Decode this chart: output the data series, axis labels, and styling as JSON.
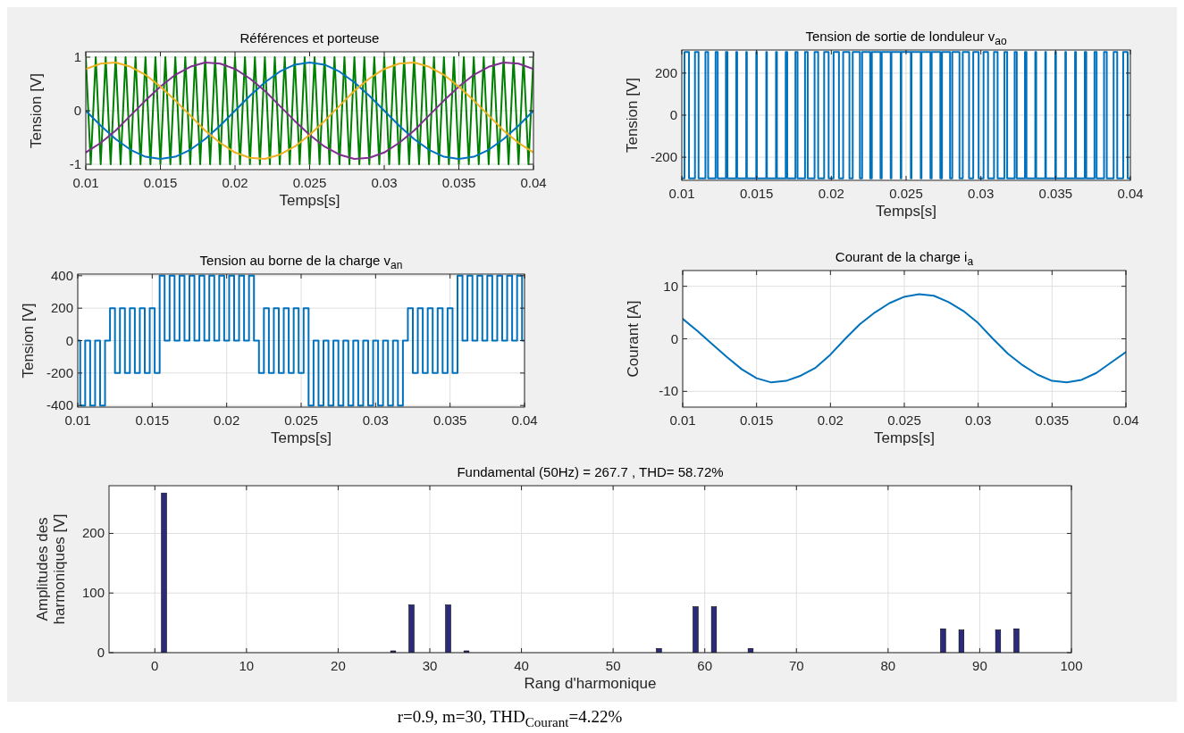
{
  "chart_data": [
    {
      "type": "line",
      "title": "Références et porteuse",
      "xlabel": "Temps[s]",
      "ylabel": "Tension [V]",
      "xlim": [
        0.01,
        0.04
      ],
      "xticks": [
        0.01,
        0.015,
        0.02,
        0.025,
        0.03,
        0.035,
        0.04
      ],
      "ylim": [
        -1.1,
        1.1
      ],
      "yticks": [
        -1,
        0,
        1
      ],
      "grid": true,
      "x": [
        0.01,
        0.011,
        0.012,
        0.013,
        0.014,
        0.015,
        0.016,
        0.017,
        0.018,
        0.019,
        0.02,
        0.021,
        0.022,
        0.023,
        0.024,
        0.025,
        0.026,
        0.027,
        0.028,
        0.029,
        0.03,
        0.031,
        0.032,
        0.033,
        0.034,
        0.035,
        0.036,
        0.037,
        0.038,
        0.039,
        0.04
      ],
      "series": [
        {
          "color": "#008000",
          "x": [
            0.01,
            0.010333,
            0.010667,
            0.011,
            0.011333,
            0.011667,
            0.012,
            0.012333,
            0.012667,
            0.013,
            0.013333,
            0.013667,
            0.014,
            0.014333,
            0.014667,
            0.015,
            0.015333,
            0.015667,
            0.016,
            0.016333,
            0.016667,
            0.017,
            0.017333,
            0.017667,
            0.018,
            0.018333,
            0.018667,
            0.019,
            0.019333,
            0.019667,
            0.02,
            0.020333,
            0.020667,
            0.021,
            0.021333,
            0.021667,
            0.022,
            0.022333,
            0.022667,
            0.023,
            0.023333,
            0.023667,
            0.024,
            0.024333,
            0.024667,
            0.025,
            0.025333,
            0.025667,
            0.026,
            0.026333,
            0.026667,
            0.027,
            0.027333,
            0.027667,
            0.028,
            0.028333,
            0.028667,
            0.029,
            0.029333,
            0.029667,
            0.03,
            0.030333,
            0.030667,
            0.031,
            0.031333,
            0.031667,
            0.032,
            0.032333,
            0.032667,
            0.033,
            0.033333,
            0.033667,
            0.034,
            0.034333,
            0.034667,
            0.035,
            0.035333,
            0.035667,
            0.036,
            0.036333,
            0.036667,
            0.037,
            0.037333,
            0.037667,
            0.038,
            0.038333,
            0.038667,
            0.039,
            0.039333,
            0.039667,
            0.04
          ],
          "values": [
            1,
            -1,
            1,
            -1,
            1,
            -1,
            1,
            -1,
            1,
            -1,
            1,
            -1,
            1,
            -1,
            1,
            -1,
            1,
            -1,
            1,
            -1,
            1,
            -1,
            1,
            -1,
            1,
            -1,
            1,
            -1,
            1,
            -1,
            1,
            -1,
            1,
            -1,
            1,
            -1,
            1,
            -1,
            1,
            -1,
            1,
            -1,
            1,
            -1,
            1,
            -1,
            1,
            -1,
            1,
            -1,
            1,
            -1,
            1,
            -1,
            1,
            -1,
            1,
            -1,
            1,
            -1,
            1,
            -1,
            1,
            -1,
            1,
            -1,
            1,
            -1,
            1,
            -1,
            1,
            -1,
            1,
            -1,
            1,
            -1,
            1,
            -1,
            1,
            -1,
            1,
            -1,
            1,
            -1,
            1,
            -1,
            1,
            -1,
            1,
            -1,
            1
          ]
        },
        {
          "color": "#0072bd",
          "values": [
            0,
            -0.28,
            -0.53,
            -0.73,
            -0.86,
            -0.9,
            -0.86,
            -0.73,
            -0.53,
            -0.28,
            0,
            0.28,
            0.53,
            0.73,
            0.86,
            0.9,
            0.86,
            0.73,
            0.53,
            0.28,
            0,
            -0.28,
            -0.53,
            -0.73,
            -0.86,
            -0.9,
            -0.86,
            -0.73,
            -0.53,
            -0.28,
            0
          ]
        },
        {
          "color": "#7e2f8e",
          "values": [
            -0.78,
            -0.6,
            -0.37,
            -0.09,
            0.19,
            0.45,
            0.67,
            0.82,
            0.9,
            0.88,
            0.78,
            0.6,
            0.37,
            0.09,
            -0.19,
            -0.45,
            -0.67,
            -0.82,
            -0.9,
            -0.88,
            -0.78,
            -0.6,
            -0.37,
            -0.09,
            0.19,
            0.45,
            0.67,
            0.82,
            0.9,
            0.88,
            0.78
          ]
        },
        {
          "color": "#edb120",
          "values": [
            0.78,
            0.88,
            0.9,
            0.82,
            0.67,
            0.45,
            0.19,
            -0.09,
            -0.37,
            -0.6,
            -0.78,
            -0.88,
            -0.9,
            -0.82,
            -0.67,
            -0.45,
            -0.19,
            0.09,
            0.37,
            0.6,
            0.78,
            0.88,
            0.9,
            0.82,
            0.67,
            0.45,
            0.19,
            -0.09,
            -0.37,
            -0.6,
            -0.78
          ]
        }
      ]
    },
    {
      "type": "step",
      "title": "Tension de sortie de londuleur v$_{ao}$",
      "xlabel": "Temps[s]",
      "ylabel": "Tension [V]",
      "xlim": [
        0.01,
        0.04
      ],
      "xticks": [
        0.01,
        0.015,
        0.02,
        0.025,
        0.03,
        0.035,
        0.04
      ],
      "ylim": [
        -310,
        310
      ],
      "yticks": [
        -200,
        0,
        200
      ],
      "grid": true,
      "series": [
        {
          "color": "#0072bd",
          "x": [
            0.01,
            0.01018,
            0.01048,
            0.01088,
            0.01112,
            0.01158,
            0.01176,
            0.01226,
            0.0124,
            0.01295,
            0.01305,
            0.01364,
            0.0137,
            0.01431,
            0.01435,
            0.01498,
            0.01502,
            0.01565,
            0.01569,
            0.0163,
            0.01636,
            0.01695,
            0.01705,
            0.0176,
            0.01774,
            0.01824,
            0.01842,
            0.01888,
            0.01912,
            0.01952,
            0.01982,
            0.02015,
            0.02051,
            0.02079,
            0.02121,
            0.02143,
            0.02191,
            0.02206,
            0.0226,
            0.02271,
            0.02329,
            0.02337,
            0.02397,
            0.02402,
            0.02464,
            0.02468,
            0.02532,
            0.02536,
            0.02598,
            0.02603,
            0.02663,
            0.02671,
            0.02729,
            0.0274,
            0.02794,
            0.02809,
            0.02857,
            0.02879,
            0.02921,
            0.02949,
            0.02985,
            0.03018,
            0.03048,
            0.03088,
            0.03112,
            0.03158,
            0.03176,
            0.03226,
            0.0324,
            0.03295,
            0.03305,
            0.03364,
            0.0337,
            0.03431,
            0.03435,
            0.03498,
            0.03502,
            0.03565,
            0.03569,
            0.0363,
            0.03636,
            0.03695,
            0.03705,
            0.0376,
            0.03774,
            0.03824,
            0.03842,
            0.03888,
            0.03912,
            0.03952,
            0.03982,
            0.04
          ],
          "values": [
            -300,
            300,
            -300,
            300,
            -300,
            300,
            -300,
            300,
            -300,
            300,
            -300,
            300,
            -300,
            300,
            -300,
            300,
            -300,
            300,
            -300,
            300,
            -300,
            300,
            -300,
            300,
            -300,
            300,
            -300,
            300,
            -300,
            300,
            -300,
            300,
            -300,
            300,
            -300,
            300,
            -300,
            300,
            -300,
            300,
            -300,
            300,
            -300,
            300,
            -300,
            300,
            -300,
            300,
            -300,
            300,
            -300,
            300,
            -300,
            300,
            -300,
            300,
            -300,
            300,
            -300,
            300,
            -300,
            300,
            -300,
            300,
            -300,
            300,
            -300,
            300,
            -300,
            300,
            -300,
            300,
            -300,
            300,
            -300,
            300,
            -300,
            300,
            -300,
            300,
            -300,
            300,
            -300,
            300,
            -300,
            300,
            -300,
            300,
            -300,
            300,
            -300,
            -300
          ]
        }
      ]
    },
    {
      "type": "step",
      "title": "Tension au borne de la charge v$_{an}$",
      "xlabel": "Temps[s]",
      "ylabel": "Tension [V]",
      "xlim": [
        0.01,
        0.04
      ],
      "xticks": [
        0.01,
        0.015,
        0.02,
        0.025,
        0.03,
        0.035,
        0.04
      ],
      "ylim": [
        -410,
        410
      ],
      "yticks": [
        -400,
        -200,
        0,
        200,
        400
      ],
      "grid": true,
      "series": [
        {
          "color": "#0072bd",
          "x": [
            0.01,
            0.010167,
            0.0105,
            0.010833,
            0.011167,
            0.0115,
            0.011833,
            0.012167,
            0.0125,
            0.012833,
            0.013167,
            0.0135,
            0.013833,
            0.014167,
            0.0145,
            0.014833,
            0.015167,
            0.0155,
            0.015833,
            0.016167,
            0.0165,
            0.016833,
            0.017167,
            0.0175,
            0.017833,
            0.018167,
            0.0185,
            0.018833,
            0.019167,
            0.0195,
            0.019833,
            0.020167,
            0.0205,
            0.020833,
            0.021167,
            0.0215,
            0.021833,
            0.022167,
            0.0225,
            0.022833,
            0.023167,
            0.0235,
            0.023833,
            0.024167,
            0.0245,
            0.024833,
            0.025167,
            0.0255,
            0.025833,
            0.026167,
            0.0265,
            0.026833,
            0.027167,
            0.0275,
            0.027833,
            0.028167,
            0.0285,
            0.028833,
            0.029167,
            0.0295,
            0.029833,
            0.030167,
            0.0305,
            0.030833,
            0.031167,
            0.0315,
            0.031833,
            0.032167,
            0.0325,
            0.032833,
            0.033167,
            0.0335,
            0.033833,
            0.034167,
            0.0345,
            0.034833,
            0.035167,
            0.0355,
            0.035833,
            0.036167,
            0.0365,
            0.036833,
            0.037167,
            0.0375,
            0.037833,
            0.038167,
            0.0385,
            0.038833,
            0.039167,
            0.0395,
            0.039833,
            0.04
          ],
          "values": [
            0,
            -400,
            0,
            -400,
            0,
            -400,
            0,
            200,
            -200,
            200,
            -200,
            200,
            -200,
            200,
            -200,
            200,
            -200,
            400,
            0,
            400,
            0,
            400,
            0,
            400,
            0,
            400,
            0,
            400,
            0,
            400,
            0,
            400,
            0,
            400,
            0,
            400,
            0,
            -200,
            200,
            -200,
            200,
            -200,
            200,
            -200,
            200,
            -200,
            200,
            -400,
            0,
            -400,
            0,
            -400,
            0,
            -400,
            0,
            -400,
            0,
            -400,
            0,
            -400,
            0,
            -400,
            0,
            -400,
            0,
            -400,
            0,
            200,
            -200,
            200,
            -200,
            200,
            -200,
            200,
            -200,
            200,
            -200,
            400,
            0,
            400,
            0,
            400,
            0,
            400,
            0,
            400,
            0,
            400,
            0,
            400,
            0,
            0
          ]
        }
      ]
    },
    {
      "type": "line",
      "title": "Courant de la charge i$_{a}$",
      "xlabel": "Temps[s]",
      "ylabel": "Courant [A]",
      "xlim": [
        0.01,
        0.04
      ],
      "xticks": [
        0.01,
        0.015,
        0.02,
        0.025,
        0.03,
        0.035,
        0.04
      ],
      "ylim": [
        -13,
        13
      ],
      "yticks": [
        -10,
        0,
        10
      ],
      "grid": true,
      "x": [
        0.01,
        0.011,
        0.012,
        0.013,
        0.014,
        0.015,
        0.016,
        0.017,
        0.018,
        0.019,
        0.02,
        0.021,
        0.022,
        0.023,
        0.024,
        0.025,
        0.026,
        0.027,
        0.028,
        0.029,
        0.03,
        0.031,
        0.032,
        0.033,
        0.034,
        0.035,
        0.036,
        0.037,
        0.038,
        0.039,
        0.04
      ],
      "series": [
        {
          "color": "#0072bd",
          "values": [
            3.8,
            1.5,
            -1,
            -3.5,
            -5.8,
            -7.5,
            -8.3,
            -8,
            -7,
            -5.5,
            -3,
            0,
            2.8,
            5,
            6.8,
            8,
            8.5,
            8.2,
            7,
            5.3,
            3,
            0,
            -2.8,
            -5,
            -6.8,
            -8,
            -8.3,
            -7.8,
            -6.5,
            -4.5,
            -2.5
          ]
        }
      ]
    },
    {
      "type": "bar",
      "title": "Fundamental (50Hz) = 267.7 , THD= 58.72%",
      "xlabel": "Rang d'harmonique",
      "ylabel": "Amplitudes des harmoniques [V]",
      "xlim": [
        -5,
        100
      ],
      "xticks": [
        0,
        10,
        20,
        30,
        40,
        50,
        60,
        70,
        80,
        90,
        100
      ],
      "ylim": [
        0,
        280
      ],
      "yticks": [
        0,
        100,
        200
      ],
      "grid": true,
      "color": "#2b2a7c",
      "x": [
        1,
        26,
        28,
        32,
        34,
        55,
        59,
        61,
        65,
        86,
        88,
        92,
        94
      ],
      "values": [
        267.7,
        3,
        80,
        80,
        3,
        7,
        77,
        77,
        7,
        40,
        38,
        38,
        40
      ],
      "annotations": [
        "r=0.9, m=30, THD$_{Courant}$=4.22%"
      ]
    }
  ]
}
